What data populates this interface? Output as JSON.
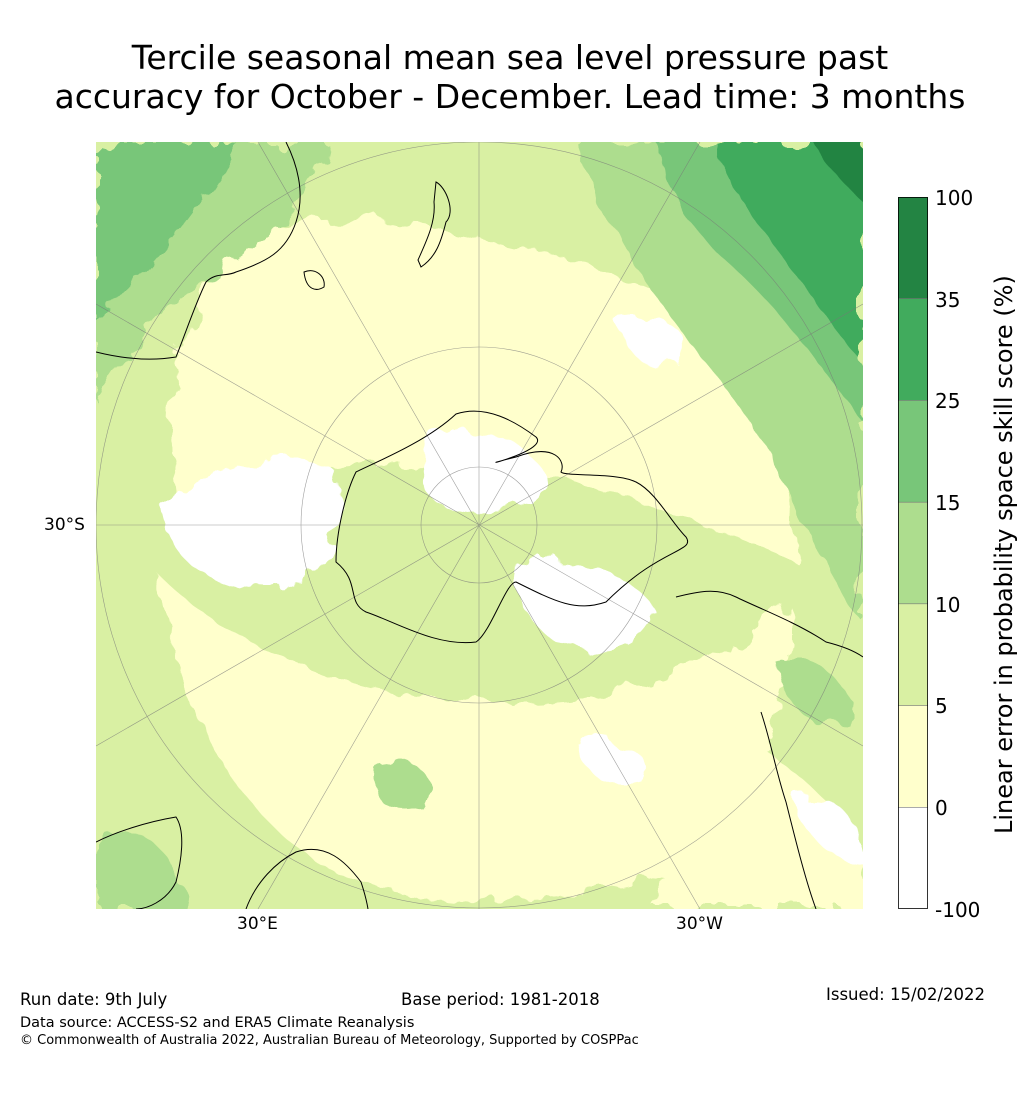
{
  "title": {
    "line1": "Tercile seasonal mean sea level pressure past",
    "line2": "accuracy for October - December. Lead time: 3 months"
  },
  "map": {
    "projection": "south-polar-stereographic",
    "lat_label": "30°S",
    "lon_labels": [
      "30°E",
      "30°W"
    ]
  },
  "colorbar": {
    "label": "Linear error in probability space skill score (%)",
    "ticks": [
      "100",
      "35",
      "25",
      "15",
      "10",
      "5",
      "0",
      "-100"
    ],
    "bins": [
      {
        "range": "35 to 100",
        "color": "#238443"
      },
      {
        "range": "25 to 35",
        "color": "#41ab5d"
      },
      {
        "range": "15 to 25",
        "color": "#78c679"
      },
      {
        "range": "10 to 15",
        "color": "#addd8e"
      },
      {
        "range": "5 to 10",
        "color": "#d9f0a3"
      },
      {
        "range": "0 to 5",
        "color": "#ffffcc"
      },
      {
        "range": "-100 to 0",
        "color": "#ffffff"
      }
    ]
  },
  "footer": {
    "run_date": "Run date: 9th July",
    "base_period": "Base period: 1981-2018",
    "issued": "Issued: 15/02/2022",
    "data_source": "Data source: ACCESS-S2 and ERA5 Climate Reanalysis",
    "copyright": "© Commonwealth of Australia 2022, Australian Bureau of Meteorology, Supported by COSPPac"
  }
}
